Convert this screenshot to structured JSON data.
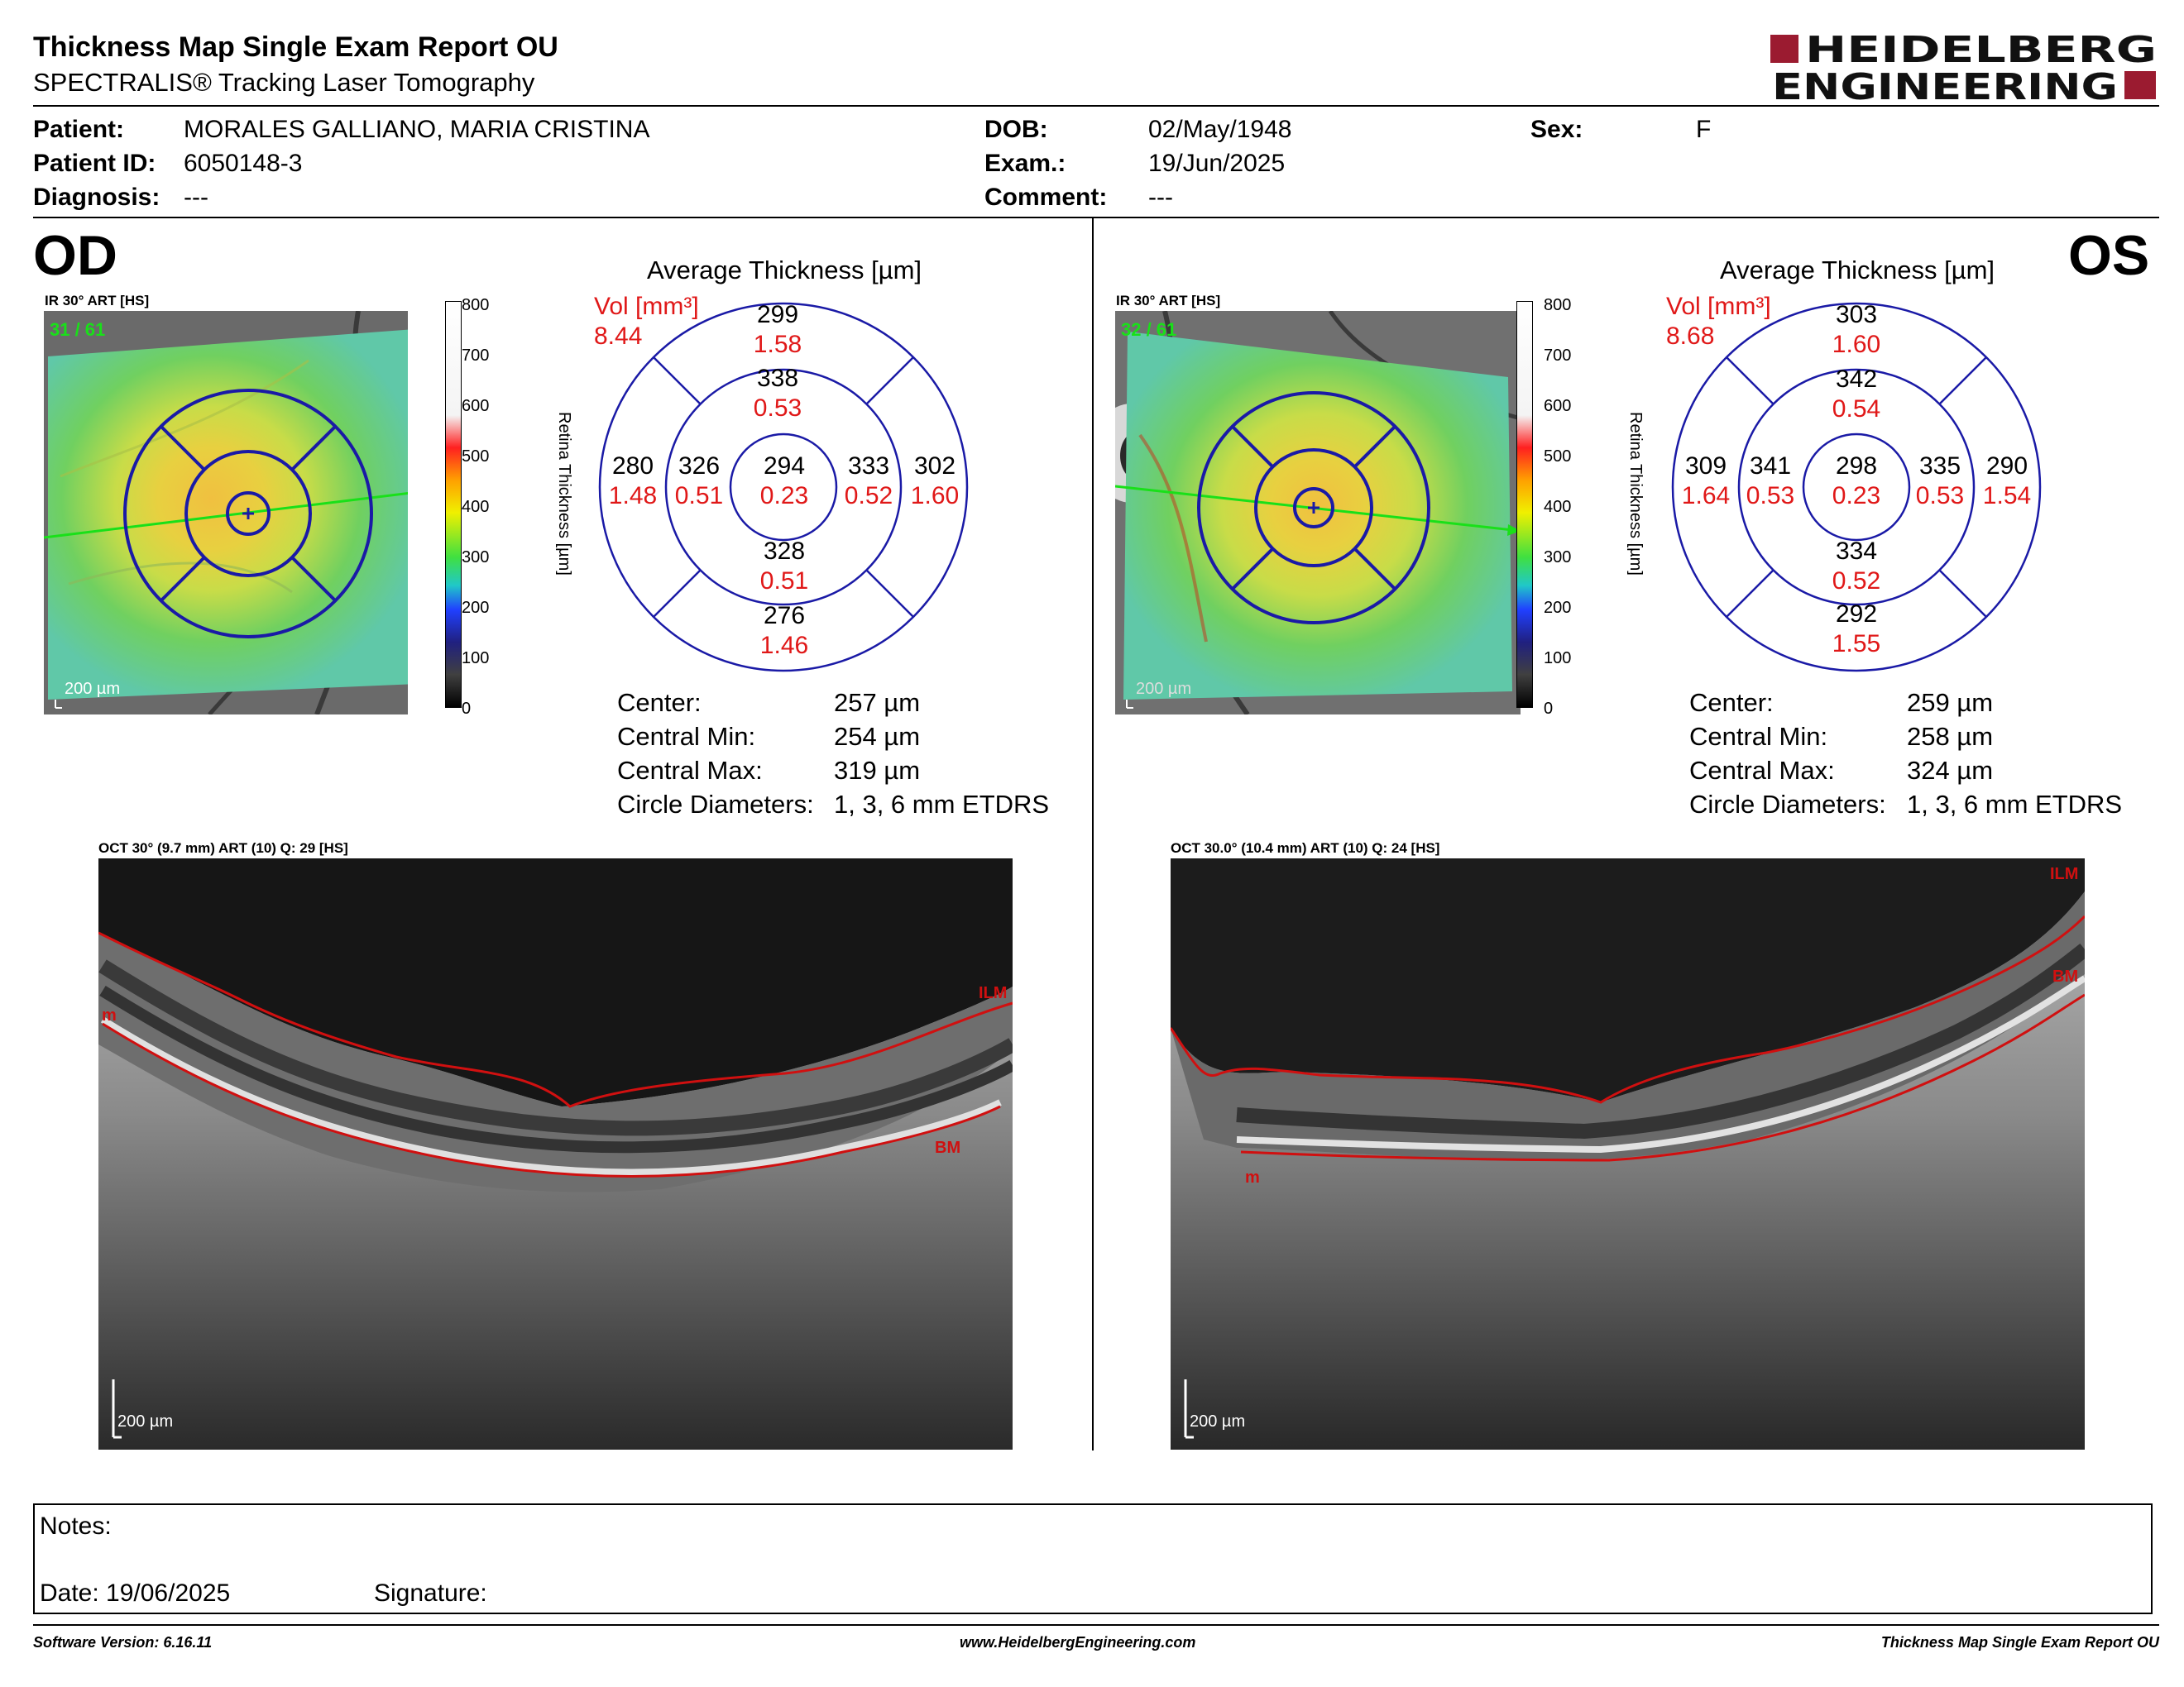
{
  "report": {
    "title": "Thickness Map Single Exam Report OU",
    "subtitle": "SPECTRALIS® Tracking Laser Tomography"
  },
  "logo": {
    "line1": "HEIDELBERG",
    "line2": "ENGINEERING",
    "accent": "#9b1b30"
  },
  "patient": {
    "patient_label": "Patient:",
    "patient_value": "MORALES GALLIANO, MARIA CRISTINA",
    "id_label": "Patient ID:",
    "id_value": "6050148-3",
    "diagnosis_label": "Diagnosis:",
    "diagnosis_value": "---",
    "dob_label": "DOB:",
    "dob_value": "02/May/1948",
    "exam_label": "Exam.:",
    "exam_value": "19/Jun/2025",
    "comment_label": "Comment:",
    "comment_value": "---",
    "sex_label": "Sex:",
    "sex_value": "F"
  },
  "colorbar": {
    "ticks": [
      "800",
      "700",
      "600",
      "500",
      "400",
      "300",
      "200",
      "100",
      "0"
    ],
    "label": "Retina  Thickness [µm]"
  },
  "od": {
    "eye": "OD",
    "ir_caption": "IR 30° ART [HS]",
    "ir_counter": "31 / 61",
    "ir_scale": "200 µm",
    "grid_title": "Average Thickness [µm]",
    "vol_label": "Vol [mm³]",
    "vol_total": "8.44",
    "sectors": {
      "center": {
        "t": "294",
        "v": "0.23"
      },
      "inner_sup": {
        "t": "338",
        "v": "0.53"
      },
      "inner_inf": {
        "t": "328",
        "v": "0.51"
      },
      "inner_left": {
        "t": "326",
        "v": "0.51"
      },
      "inner_right": {
        "t": "333",
        "v": "0.52"
      },
      "outer_sup": {
        "t": "299",
        "v": "1.58"
      },
      "outer_inf": {
        "t": "276",
        "v": "1.46"
      },
      "outer_left": {
        "t": "280",
        "v": "1.48"
      },
      "outer_right": {
        "t": "302",
        "v": "1.60"
      }
    },
    "stats": {
      "center_label": "Center:",
      "center_value": "257 µm",
      "min_label": "Central Min:",
      "min_value": "254 µm",
      "max_label": "Central Max:",
      "max_value": "319 µm",
      "diam_label": "Circle Diameters:",
      "diam_value": "1, 3, 6 mm ETDRS"
    },
    "oct_caption": "OCT 30° (9.7 mm) ART (10) Q: 29 [HS]",
    "oct_labels": {
      "ilm": "ILM",
      "bm": "BM",
      "m": "m"
    },
    "oct_scale": "200 µm"
  },
  "os": {
    "eye": "OS",
    "ir_caption": "IR 30° ART [HS]",
    "ir_counter": "32 / 61",
    "ir_scale": "200 µm",
    "grid_title": "Average Thickness [µm]",
    "vol_label": "Vol [mm³]",
    "vol_total": "8.68",
    "sectors": {
      "center": {
        "t": "298",
        "v": "0.23"
      },
      "inner_sup": {
        "t": "342",
        "v": "0.54"
      },
      "inner_inf": {
        "t": "334",
        "v": "0.52"
      },
      "inner_left": {
        "t": "341",
        "v": "0.53"
      },
      "inner_right": {
        "t": "335",
        "v": "0.53"
      },
      "outer_sup": {
        "t": "303",
        "v": "1.60"
      },
      "outer_inf": {
        "t": "292",
        "v": "1.55"
      },
      "outer_left": {
        "t": "309",
        "v": "1.64"
      },
      "outer_right": {
        "t": "290",
        "v": "1.54"
      }
    },
    "stats": {
      "center_label": "Center:",
      "center_value": "259 µm",
      "min_label": "Central Min:",
      "min_value": "258 µm",
      "max_label": "Central Max:",
      "max_value": "324 µm",
      "diam_label": "Circle Diameters:",
      "diam_value": "1, 3, 6 mm ETDRS"
    },
    "oct_caption": "OCT 30.0° (10.4 mm) ART (10) Q: 24 [HS]",
    "oct_labels": {
      "ilm": "ILM",
      "bm": "BM",
      "m": "m"
    },
    "oct_scale": "200 µm"
  },
  "notes": {
    "notes_label": "Notes:",
    "date_label": "Date: 19/06/2025",
    "signature_label": "Signature:"
  },
  "footer": {
    "left": "Software Version: 6.16.11",
    "center": "www.HeidelbergEngineering.com",
    "right": "Thickness Map Single Exam Report OU"
  },
  "colors": {
    "grid_blue": "#1a1aa6",
    "vol_red": "#e01818",
    "seg_red": "#d01010",
    "scan_green": "#19e019"
  }
}
